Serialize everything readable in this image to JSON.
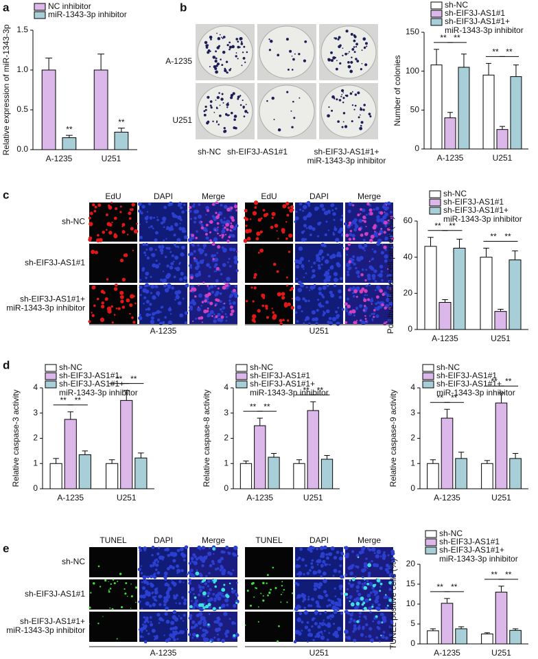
{
  "figure": {
    "panel_labels": [
      "a",
      "b",
      "c",
      "d",
      "e"
    ],
    "panel_b": {
      "row_labels": [
        "A-1235",
        "U251"
      ],
      "column_labels": [
        "sh-NC",
        "sh-EIF3J-AS1#1",
        "sh-EIF3J-AS1#1+\nmiR-1343-3p inhibitor"
      ]
    },
    "panel_c": {
      "column_labels": [
        "EdU",
        "DAPI",
        "Merge",
        "EdU",
        "DAPI",
        "Merge"
      ],
      "row_labels": [
        "sh-NC",
        "sh-EIF3J-AS1#1",
        "sh-EIF3J-AS1#1+\nmiR-1343-3p inhibitor"
      ],
      "group_labels": [
        "A-1235",
        "U251"
      ]
    },
    "panel_e": {
      "column_labels": [
        "TUNEL",
        "DAPI",
        "Merge",
        "TUNEL",
        "DAPI",
        "Merge"
      ],
      "row_labels": [
        "sh-NC",
        "sh-EIF3J-AS1#1",
        "sh-EIF3J-AS1#1+\nmiR-1343-3p inhibitor"
      ],
      "group_labels": [
        "A-1235",
        "U251"
      ]
    }
  },
  "chart_data": [
    {
      "type": "bar",
      "ylabel": "Relative expression of miR-1343-3p",
      "categories": [
        "A-1235",
        "U251"
      ],
      "series": [
        {
          "name": "NC inhibitor",
          "color": "#dcb8ea",
          "values": [
            1.0,
            1.0
          ],
          "errors": [
            0.15,
            0.2
          ]
        },
        {
          "name": "miR-1343-3p inhibitor",
          "color": "#a8cfd8",
          "values": [
            0.15,
            0.22
          ],
          "errors": [
            0.03,
            0.05
          ]
        }
      ],
      "ylim": [
        0,
        1.5
      ],
      "yticks": [
        {
          "value": 0,
          "label": "0.0"
        },
        0.5,
        {
          "value": 1,
          "label": "1.0"
        },
        1.5
      ],
      "annotations": [
        "**",
        "**"
      ]
    },
    {
      "type": "bar",
      "ylabel": "Number of colonies",
      "categories": [
        "A-1235",
        "U251"
      ],
      "series": [
        {
          "name": "sh-NC",
          "color": "#ffffff",
          "values": [
            108,
            95
          ],
          "errors": [
            20,
            15
          ]
        },
        {
          "name": "sh-EIF3J-AS1#1",
          "color": "#dcb8ea",
          "values": [
            40,
            25
          ],
          "errors": [
            7,
            4
          ]
        },
        {
          "name": "sh-EIF3J-AS1#1+\nmiR-1343-3p inhibitor",
          "color": "#a8cfd8",
          "values": [
            105,
            93
          ],
          "errors": [
            17,
            15
          ]
        }
      ],
      "ylim": [
        0,
        150
      ],
      "yticks": [
        0,
        50,
        100,
        150
      ],
      "annotations": [
        "**",
        "**",
        "**",
        "**"
      ]
    },
    {
      "type": "bar",
      "ylabel": "Positive stained cell percent (%)",
      "categories": [
        "A-1235",
        "U251"
      ],
      "series": [
        {
          "name": "sh-NC",
          "color": "#ffffff",
          "values": [
            46,
            40
          ],
          "errors": [
            5,
            5
          ]
        },
        {
          "name": "sh-EIF3J-AS1#1",
          "color": "#dcb8ea",
          "values": [
            15,
            10
          ],
          "errors": [
            1.5,
            1.2
          ]
        },
        {
          "name": "sh-EIF3J-AS1#1+\nmiR-1343-3p inhibitor",
          "color": "#a8cfd8",
          "values": [
            45,
            38.5
          ],
          "errors": [
            5,
            5
          ]
        }
      ],
      "ylim": [
        0,
        60
      ],
      "yticks": [
        0,
        20,
        40,
        60
      ],
      "annotations": [
        "**",
        "**",
        "**",
        "**"
      ]
    },
    {
      "type": "bar",
      "ylabel": "Relative caspase-3 activity",
      "categories": [
        "A-1235",
        "U251"
      ],
      "series": [
        {
          "name": "sh-NC",
          "color": "#ffffff",
          "values": [
            1,
            1
          ],
          "errors": [
            0.2,
            0.15
          ]
        },
        {
          "name": "sh-EIF3J-AS1#1",
          "color": "#dcb8ea",
          "values": [
            2.75,
            3.5
          ],
          "errors": [
            0.3,
            0.4
          ]
        },
        {
          "name": "sh-EIF3J-AS1#1+\nmiR-1343-3p inhibitor",
          "color": "#a8cfd8",
          "values": [
            1.35,
            1.22
          ],
          "errors": [
            0.15,
            0.2
          ]
        }
      ],
      "ylim": [
        0,
        4
      ],
      "yticks": [
        0,
        1,
        2,
        3,
        4
      ],
      "annotations": [
        "**",
        "**",
        "**",
        "**"
      ]
    },
    {
      "type": "bar",
      "ylabel": "Relative caspase-8 activity",
      "categories": [
        "A-1235",
        "U251"
      ],
      "series": [
        {
          "name": "sh-NC",
          "color": "#ffffff",
          "values": [
            1,
            1
          ],
          "errors": [
            0.1,
            0.15
          ]
        },
        {
          "name": "sh-EIF3J-AS1#1",
          "color": "#dcb8ea",
          "values": [
            2.5,
            3.1
          ],
          "errors": [
            0.3,
            0.35
          ]
        },
        {
          "name": "sh-EIF3J-AS1#1+\nmiR-1343-3p inhibitor",
          "color": "#a8cfd8",
          "values": [
            1.25,
            1.17
          ],
          "errors": [
            0.15,
            0.15
          ]
        }
      ],
      "ylim": [
        0,
        4
      ],
      "yticks": [
        0,
        1,
        2,
        3,
        4
      ],
      "annotations": [
        "**",
        "**",
        "**",
        "**"
      ]
    },
    {
      "type": "bar",
      "ylabel": "Relative caspase-9 activity",
      "categories": [
        "A-1235",
        "U251"
      ],
      "series": [
        {
          "name": "sh-NC",
          "color": "#ffffff",
          "values": [
            1,
            1
          ],
          "errors": [
            0.15,
            0.12
          ]
        },
        {
          "name": "sh-EIF3J-AS1#1",
          "color": "#dcb8ea",
          "values": [
            2.8,
            3.4
          ],
          "errors": [
            0.35,
            0.4
          ]
        },
        {
          "name": "sh-EIF3J-AS1#1+\nmiR-1343-3p inhibitor",
          "color": "#a8cfd8",
          "values": [
            1.2,
            1.2
          ],
          "errors": [
            0.25,
            0.2
          ]
        }
      ],
      "ylim": [
        0,
        4
      ],
      "yticks": [
        0,
        1,
        2,
        3,
        4
      ],
      "annotations": [
        "**",
        "**",
        "**",
        "**"
      ]
    },
    {
      "type": "bar",
      "ylabel": "TUNEL positive cells (%)",
      "categories": [
        "A-1235",
        "U251"
      ],
      "series": [
        {
          "name": "sh-NC",
          "color": "#ffffff",
          "values": [
            3.3,
            2.5
          ],
          "errors": [
            0.5,
            0.3
          ]
        },
        {
          "name": "sh-EIF3J-AS1#1",
          "color": "#dcb8ea",
          "values": [
            10.2,
            13
          ],
          "errors": [
            1.2,
            1.5
          ]
        },
        {
          "name": "sh-EIF3J-AS1#1+\nmiR-1343-3p inhibitor",
          "color": "#a8cfd8",
          "values": [
            3.8,
            3.4
          ],
          "errors": [
            0.5,
            0.4
          ]
        }
      ],
      "ylim": [
        0,
        20
      ],
      "yticks": [
        0,
        5,
        10,
        15,
        20
      ],
      "annotations": [
        "**",
        "**",
        "**",
        "**"
      ]
    }
  ]
}
